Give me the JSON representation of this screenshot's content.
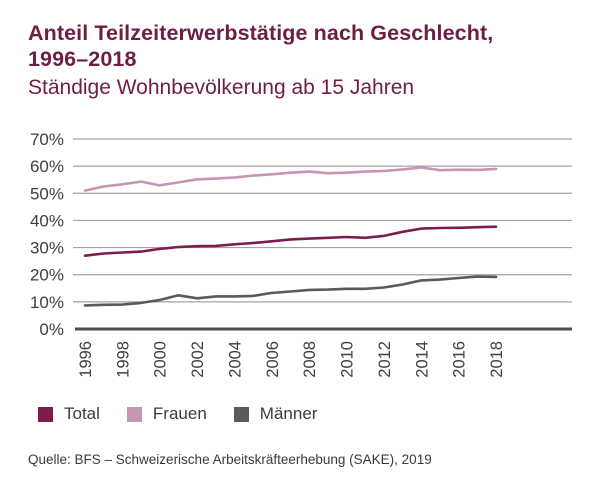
{
  "header": {
    "title_line1": "Anteil Teilzeiterwerbstätige nach Geschlecht,",
    "title_line2": "1996–2018",
    "subtitle": "Ständige Wohnbevölkerung ab 15 Jahren"
  },
  "chart_data": {
    "type": "line",
    "x": [
      1996,
      1997,
      1998,
      1999,
      2000,
      2001,
      2002,
      2003,
      2004,
      2005,
      2006,
      2007,
      2008,
      2009,
      2010,
      2011,
      2012,
      2013,
      2014,
      2015,
      2016,
      2017,
      2018
    ],
    "series": [
      {
        "name": "Total",
        "color": "#7d1c4d",
        "values": [
          27.0,
          27.8,
          28.2,
          28.5,
          29.5,
          30.2,
          30.5,
          30.6,
          31.2,
          31.7,
          32.3,
          33.0,
          33.3,
          33.6,
          33.9,
          33.6,
          34.3,
          35.8,
          37.0,
          37.2,
          37.3,
          37.5,
          37.7
        ]
      },
      {
        "name": "Frauen",
        "color": "#c795b1",
        "values": [
          51.0,
          52.5,
          53.3,
          54.3,
          52.9,
          54.0,
          55.1,
          55.4,
          55.8,
          56.5,
          57.0,
          57.6,
          58.0,
          57.4,
          57.6,
          58.0,
          58.2,
          58.8,
          59.5,
          58.5,
          58.7,
          58.6,
          59.0
        ]
      },
      {
        "name": "Männer",
        "color": "#5a5a5a",
        "values": [
          8.7,
          8.9,
          9.0,
          9.6,
          10.7,
          12.4,
          11.3,
          12.0,
          12.0,
          12.2,
          13.3,
          13.8,
          14.4,
          14.5,
          14.8,
          14.8,
          15.3,
          16.4,
          17.9,
          18.2,
          18.8,
          19.3,
          19.2
        ]
      }
    ],
    "title": "Anteil Teilzeiterwerbstätige nach Geschlecht, 1996–2018",
    "subtitle": "Ständige Wohnbevölkerung ab 15 Jahren",
    "xlabel": "",
    "ylabel": "",
    "ylim": [
      0,
      70
    ],
    "ytick_step": 10,
    "ytick_labels": [
      "0%",
      "10%",
      "20%",
      "30%",
      "40%",
      "50%",
      "60%",
      "70%"
    ],
    "xtick_labels": [
      "1996",
      "1998",
      "2000",
      "2002",
      "2004",
      "2006",
      "2008",
      "2010",
      "2012",
      "2014",
      "2016",
      "2018"
    ],
    "xtick_rotation": -90,
    "grid": "horizontal-only",
    "legend_position": "bottom-left"
  },
  "legend": {
    "items": [
      {
        "label": "Total",
        "color": "#7d1c4d"
      },
      {
        "label": "Frauen",
        "color": "#c795b1"
      },
      {
        "label": "Männer",
        "color": "#5a5a5a"
      }
    ]
  },
  "source": "Quelle: BFS – Schweizerische Arbeitskräfteerhebung (SAKE), 2019",
  "colors": {
    "title": "#6e1e45",
    "grid": "#a3a3a3",
    "axis": "#4d4d4d",
    "tick_text": "#3f3f3f",
    "background": "#ffffff"
  }
}
